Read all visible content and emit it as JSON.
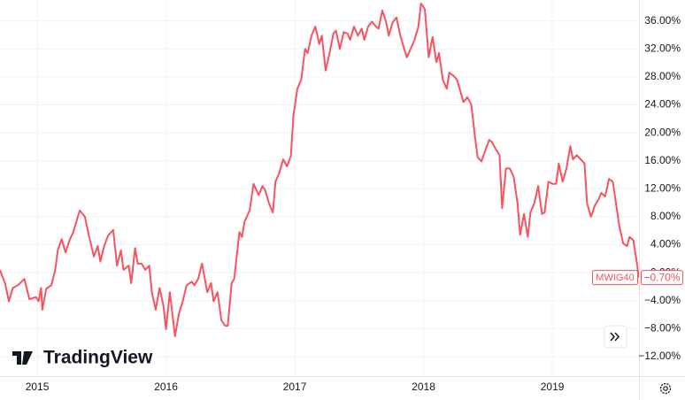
{
  "chart_data": {
    "type": "line",
    "logo": "TradingView",
    "xlim": [
      2014.711,
      2019.673
    ],
    "xticks": [
      2015,
      2016,
      2017,
      2018,
      2019
    ],
    "ylim": [
      -14.8,
      39.0
    ],
    "yticks": [
      {
        "value": -12,
        "label": "−12.00%"
      },
      {
        "value": -8,
        "label": "−8.00%"
      },
      {
        "value": -4,
        "label": "−4.00%"
      },
      {
        "value": 0,
        "label": "0.00%"
      },
      {
        "value": 4,
        "label": "4.00%"
      },
      {
        "value": 8,
        "label": "8.00%"
      },
      {
        "value": 12,
        "label": "12.00%"
      },
      {
        "value": 16,
        "label": "16.00%"
      },
      {
        "value": 20,
        "label": "20.00%"
      },
      {
        "value": 24,
        "label": "24.00%"
      },
      {
        "value": 28,
        "label": "28.00%"
      },
      {
        "value": 32,
        "label": "32.00%"
      },
      {
        "value": 36,
        "label": "36.00%"
      }
    ],
    "grid": true,
    "last_value_label": "−0.70%",
    "x": [
      2014.71,
      2014.75,
      2014.78,
      2014.81,
      2014.85,
      2014.9,
      2014.94,
      2014.99,
      2015.01,
      2015.03,
      2015.04,
      2015.07,
      2015.11,
      2015.14,
      2015.16,
      2015.19,
      2015.22,
      2015.25,
      2015.28,
      2015.33,
      2015.37,
      2015.4,
      2015.44,
      2015.47,
      2015.49,
      2015.52,
      2015.55,
      2015.59,
      2015.62,
      2015.65,
      2015.67,
      2015.71,
      2015.73,
      2015.76,
      2015.78,
      2015.81,
      2015.84,
      2015.87,
      2015.89,
      2015.92,
      2015.95,
      2015.98,
      2016.0,
      2016.03,
      2016.07,
      2016.1,
      2016.13,
      2016.16,
      2016.2,
      2016.22,
      2016.25,
      2016.28,
      2016.32,
      2016.35,
      2016.37,
      2016.4,
      2016.43,
      2016.46,
      2016.48,
      2016.51,
      2016.53,
      2016.57,
      2016.59,
      2016.61,
      2016.65,
      2016.68,
      2016.72,
      2016.75,
      2016.77,
      2016.8,
      2016.83,
      2016.85,
      2016.88,
      2016.91,
      2016.94,
      2016.97,
      2016.99,
      2017.02,
      2017.05,
      2017.08,
      2017.1,
      2017.13,
      2017.16,
      2017.19,
      2017.21,
      2017.24,
      2017.27,
      2017.3,
      2017.32,
      2017.35,
      2017.38,
      2017.41,
      2017.43,
      2017.46,
      2017.49,
      2017.52,
      2017.54,
      2017.57,
      2017.6,
      2017.63,
      2017.65,
      2017.68,
      2017.71,
      2017.73,
      2017.76,
      2017.79,
      2017.82,
      2017.85,
      2017.87,
      2017.9,
      2017.93,
      2017.96,
      2017.98,
      2018.01,
      2018.04,
      2018.07,
      2018.1,
      2018.12,
      2018.15,
      2018.18,
      2018.2,
      2018.23,
      2018.26,
      2018.29,
      2018.31,
      2018.34,
      2018.37,
      2018.4,
      2018.42,
      2018.45,
      2018.48,
      2018.51,
      2018.53,
      2018.56,
      2018.59,
      2018.61,
      2018.64,
      2018.67,
      2018.7,
      2018.73,
      2018.75,
      2018.78,
      2018.81,
      2018.83,
      2018.86,
      2018.89,
      2018.92,
      2018.94,
      2018.97,
      2019.0,
      2019.03,
      2019.05,
      2019.08,
      2019.11,
      2019.14,
      2019.16,
      2019.19,
      2019.22,
      2019.25,
      2019.27,
      2019.3,
      2019.33,
      2019.36,
      2019.38,
      2019.41,
      2019.44,
      2019.47,
      2019.49,
      2019.52,
      2019.55,
      2019.58,
      2019.6,
      2019.63,
      2019.66,
      2019.67
    ],
    "series": [
      {
        "name": "MWIG40",
        "color": "#f7525f",
        "values": [
          0.4,
          -1.5,
          -4.1,
          -2.2,
          -1.8,
          -0.9,
          -3.8,
          -3.5,
          -4.1,
          -2.2,
          -5.3,
          -2.3,
          -1.8,
          0.4,
          3.2,
          4.8,
          2.9,
          4.6,
          5.8,
          8.9,
          8.0,
          5.4,
          2.3,
          3.8,
          1.6,
          3.8,
          5.3,
          6.1,
          1.0,
          3.2,
          0.4,
          1.0,
          -1.5,
          3.5,
          1.3,
          1.3,
          0.4,
          1.0,
          -2.8,
          -5.3,
          -2.2,
          -4.7,
          -8.1,
          -2.8,
          -9.1,
          -5.9,
          -4.1,
          -1.8,
          -1.3,
          -1.8,
          -0.9,
          1.3,
          -2.8,
          -1.5,
          -4.1,
          -2.8,
          -6.8,
          -7.6,
          -7.6,
          -1.5,
          -0.9,
          5.8,
          5.1,
          7.3,
          8.9,
          12.7,
          11.1,
          12.4,
          11.8,
          9.9,
          8.6,
          13.0,
          14.3,
          16.2,
          15.2,
          16.7,
          22.5,
          26.3,
          27.6,
          32.0,
          31.4,
          33.9,
          35.2,
          32.7,
          33.9,
          28.9,
          31.4,
          34.2,
          34.6,
          32.0,
          34.4,
          34.2,
          33.3,
          35.2,
          33.9,
          34.9,
          33.3,
          35.2,
          35.9,
          35.2,
          34.9,
          37.5,
          35.8,
          33.9,
          35.8,
          36.5,
          33.9,
          32.0,
          30.8,
          32.0,
          33.3,
          35.2,
          38.5,
          37.7,
          30.8,
          33.7,
          30.1,
          31.4,
          27.6,
          26.3,
          28.6,
          28.2,
          27.6,
          25.7,
          24.4,
          25.1,
          24.1,
          19.4,
          16.5,
          15.9,
          17.5,
          19.0,
          18.7,
          17.7,
          16.8,
          9.2,
          14.9,
          14.9,
          13.7,
          9.9,
          5.4,
          8.4,
          5.1,
          8.6,
          9.9,
          12.4,
          8.4,
          8.6,
          13.0,
          12.7,
          12.7,
          15.6,
          13.0,
          14.9,
          18.1,
          16.2,
          16.8,
          16.2,
          15.6,
          9.9,
          8.0,
          9.6,
          10.5,
          11.4,
          10.9,
          13.4,
          13.0,
          10.5,
          6.7,
          4.2,
          3.8,
          5.1,
          4.6,
          1.0,
          -0.7
        ]
      }
    ]
  }
}
